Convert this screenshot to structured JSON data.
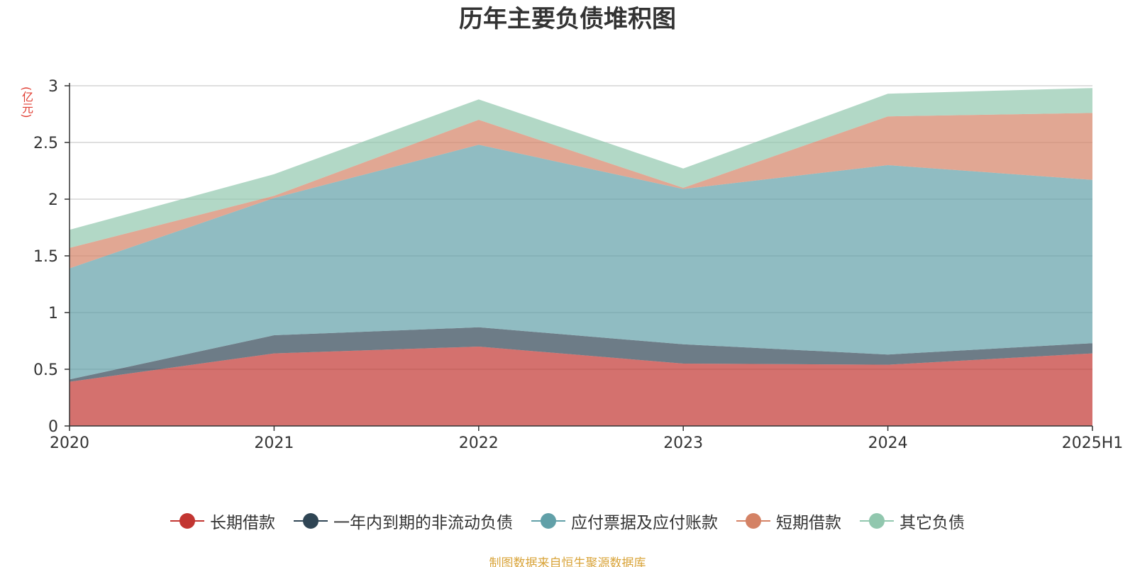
{
  "chart_data": {
    "type": "area",
    "stacked": true,
    "title": "历年主要负债堆积图",
    "unit_label": "(亿元)",
    "categories": [
      "2020",
      "2021",
      "2022",
      "2023",
      "2024",
      "2025H1"
    ],
    "ylim": [
      0,
      3
    ],
    "yticks": [
      "0",
      "0.5",
      "1",
      "1.5",
      "2",
      "2.5",
      "3"
    ],
    "ytick_values": [
      0,
      0.5,
      1,
      1.5,
      2,
      2.5,
      3
    ],
    "grid": true,
    "legend_position": "bottom",
    "series": [
      {
        "name": "长期借款",
        "color": "#c23531",
        "values": [
          0.39,
          0.64,
          0.7,
          0.55,
          0.54,
          0.64
        ]
      },
      {
        "name": "一年内到期的非流动负债",
        "color": "#2f4554",
        "values": [
          0.02,
          0.16,
          0.17,
          0.17,
          0.09,
          0.09
        ]
      },
      {
        "name": "应付票据及应付账款",
        "color": "#61a0a8",
        "values": [
          0.98,
          1.21,
          1.61,
          1.37,
          1.67,
          1.44
        ]
      },
      {
        "name": "短期借款",
        "color": "#d48265",
        "values": [
          0.18,
          0.02,
          0.22,
          0.01,
          0.43,
          0.59
        ]
      },
      {
        "name": "其它负债",
        "color": "#91c7ae",
        "values": [
          0.16,
          0.19,
          0.18,
          0.17,
          0.2,
          0.22
        ]
      }
    ]
  },
  "footer": {
    "source": "制图数据来自恒生聚源数据库"
  }
}
